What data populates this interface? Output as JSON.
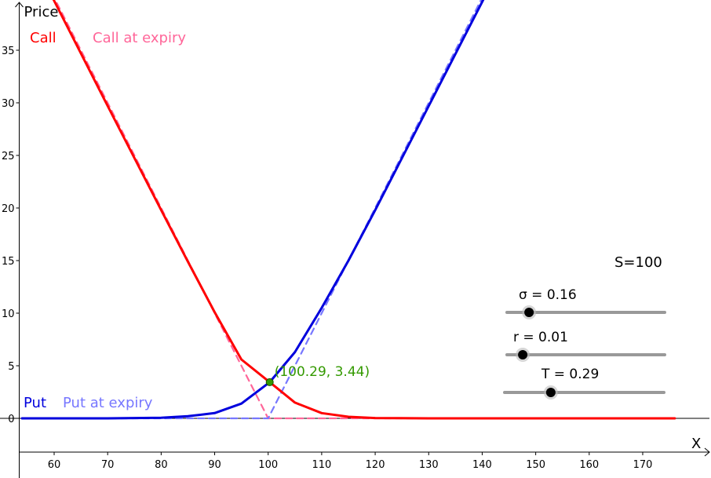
{
  "chart_data": {
    "type": "line",
    "title": "",
    "xlabel": "X",
    "ylabel": "Price",
    "xlim": [
      54,
      176
    ],
    "ylim": [
      -3.5,
      39
    ],
    "x_ticks": [
      60,
      70,
      80,
      90,
      100,
      110,
      120,
      130,
      140,
      150,
      160,
      170
    ],
    "y_ticks": [
      0,
      5,
      10,
      15,
      20,
      25,
      30,
      35
    ],
    "grid": false,
    "parameters": {
      "S": 100,
      "sigma": 0.16,
      "r": 0.01,
      "T": 0.29
    },
    "series": [
      {
        "name": "Call",
        "style": "solid",
        "color": "#ff0000",
        "x": [
          54,
          60,
          70,
          80,
          85,
          90,
          95,
          100.29,
          105,
          110,
          115,
          120,
          130,
          150,
          176
        ],
        "y": [
          45.7,
          39.7,
          29.7,
          19.8,
          14.9,
          10.1,
          5.6,
          3.44,
          1.5,
          0.5,
          0.15,
          0.03,
          0.0,
          0.0,
          0.0
        ]
      },
      {
        "name": "Call at expiry",
        "style": "dashed",
        "color": "#ff6699",
        "x": [
          54,
          100,
          176
        ],
        "y": [
          46,
          0,
          0
        ]
      },
      {
        "name": "Put",
        "style": "solid",
        "color": "#0000dd",
        "x": [
          54,
          70,
          80,
          85,
          90,
          95,
          100.29,
          105,
          110,
          115,
          120,
          130,
          140,
          142.5
        ],
        "y": [
          0.0,
          0.0,
          0.05,
          0.2,
          0.5,
          1.4,
          3.44,
          6.3,
          10.5,
          15.0,
          19.8,
          29.7,
          39.6,
          42.1
        ]
      },
      {
        "name": "Put at expiry",
        "style": "dashed",
        "color": "#7777ff",
        "x": [
          54,
          100,
          142.5
        ],
        "y": [
          0,
          0,
          42.5
        ]
      }
    ],
    "annotations": [
      {
        "text": "(100.29, 3.44)",
        "x": 100.29,
        "y": 3.44,
        "color": "#339900"
      }
    ],
    "legend_position": "left"
  },
  "legend": {
    "call": "Call",
    "call_expiry": "Call at expiry",
    "put": "Put",
    "put_expiry": "Put at expiry"
  },
  "spot_label": "S=100",
  "sliders": [
    {
      "label": "σ = 0.16",
      "fraction": 0.14
    },
    {
      "label": "r = 0.01",
      "fraction": 0.1
    },
    {
      "label": "T = 0.29",
      "fraction": 0.29
    }
  ],
  "colors": {
    "call": "#ff0000",
    "call_expiry": "#ff6699",
    "put": "#0000dd",
    "put_expiry": "#7777ff",
    "intersection": "#339900",
    "slider_track": "#999999",
    "slider_knob": "#000000"
  }
}
